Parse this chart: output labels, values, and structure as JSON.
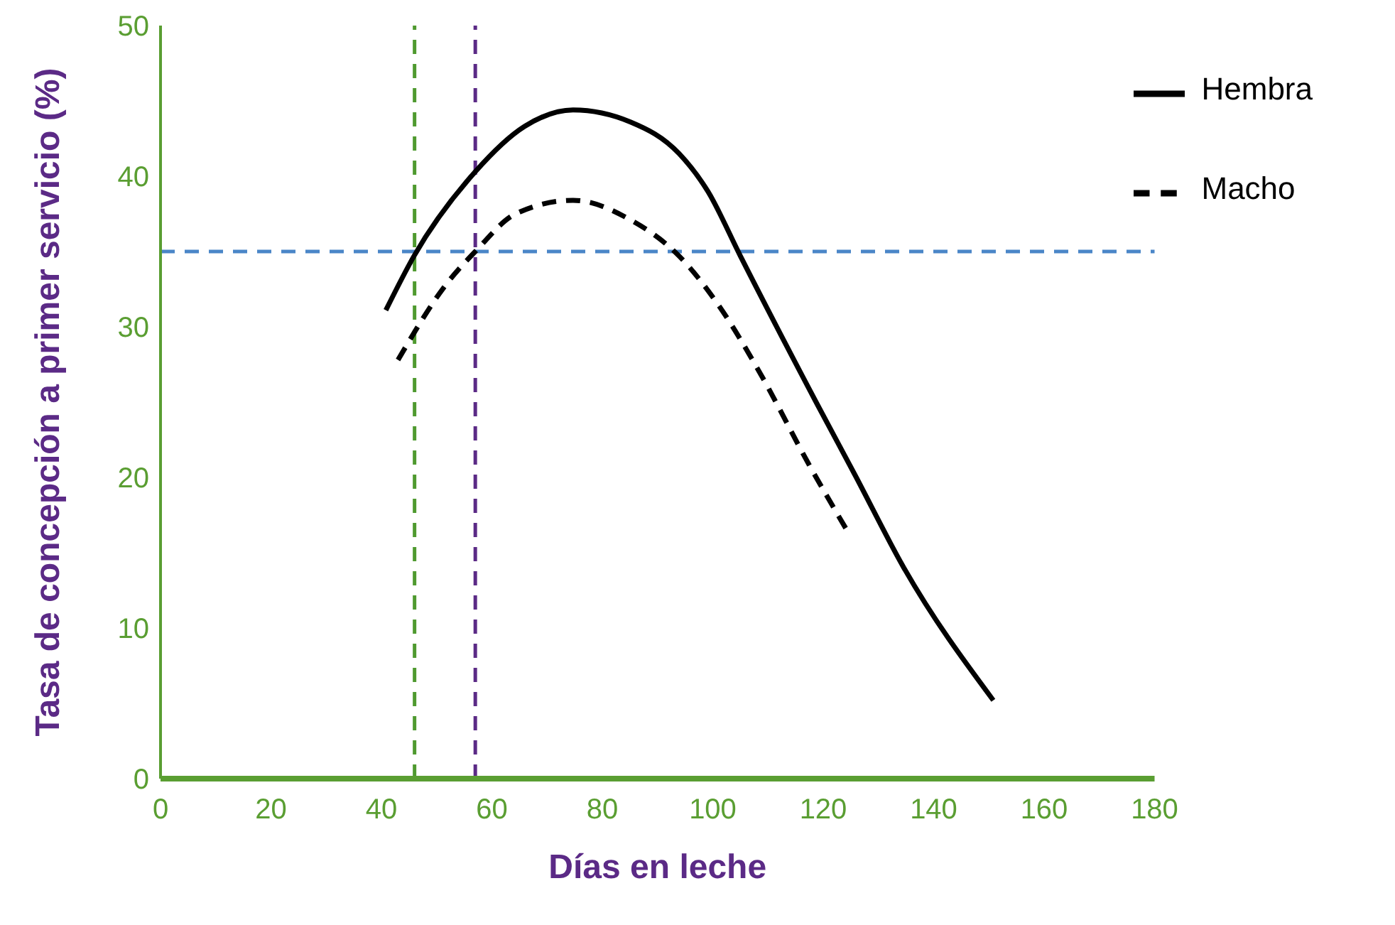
{
  "chart_data": {
    "type": "line",
    "xlabel": "Días en leche",
    "ylabel": "Tasa de concepción a primer servicio (%)",
    "xlim": [
      0,
      180
    ],
    "xticks": [
      0,
      20,
      40,
      60,
      80,
      100,
      120,
      140,
      160,
      180
    ],
    "ylim": [
      0,
      50
    ],
    "yticks": [
      0,
      10,
      20,
      30,
      40,
      50
    ],
    "grid": false,
    "legend": "top right",
    "marker": "none",
    "series": [
      {
        "name": "Hembra",
        "color": "#000000",
        "line_style": "solid",
        "x": [
          40.8,
          45.9,
          57,
          65.9,
          74.7,
          85.1,
          93.9,
          99.1,
          105,
          119,
          125.7,
          134.6,
          150.8
        ],
        "values": [
          31.1,
          34.7,
          40.3,
          43.3,
          44.4,
          43.6,
          41.5,
          39,
          34.7,
          24.8,
          20.2,
          14,
          5.2
        ]
      },
      {
        "name": "Macho",
        "color": "#000000",
        "line_style": "dashed",
        "x": [
          43,
          51.9,
          57,
          64.3,
          74.7,
          85.1,
          93.9,
          101.3,
          108.6,
          117.5,
          124.6
        ],
        "values": [
          27.8,
          32.9,
          35,
          37.5,
          38.4,
          37.1,
          34.7,
          31.3,
          26.9,
          20.8,
          16.3
        ]
      }
    ],
    "ref_lines": [
      {
        "axis": "x",
        "value": 46,
        "color": "#4f9a2f",
        "line_style": "dashed"
      },
      {
        "axis": "x",
        "value": 57,
        "color": "#5b2a86",
        "line_style": "dashed"
      },
      {
        "axis": "y",
        "value": 35,
        "color": "#4a86c8",
        "line_style": "dashed"
      }
    ]
  }
}
